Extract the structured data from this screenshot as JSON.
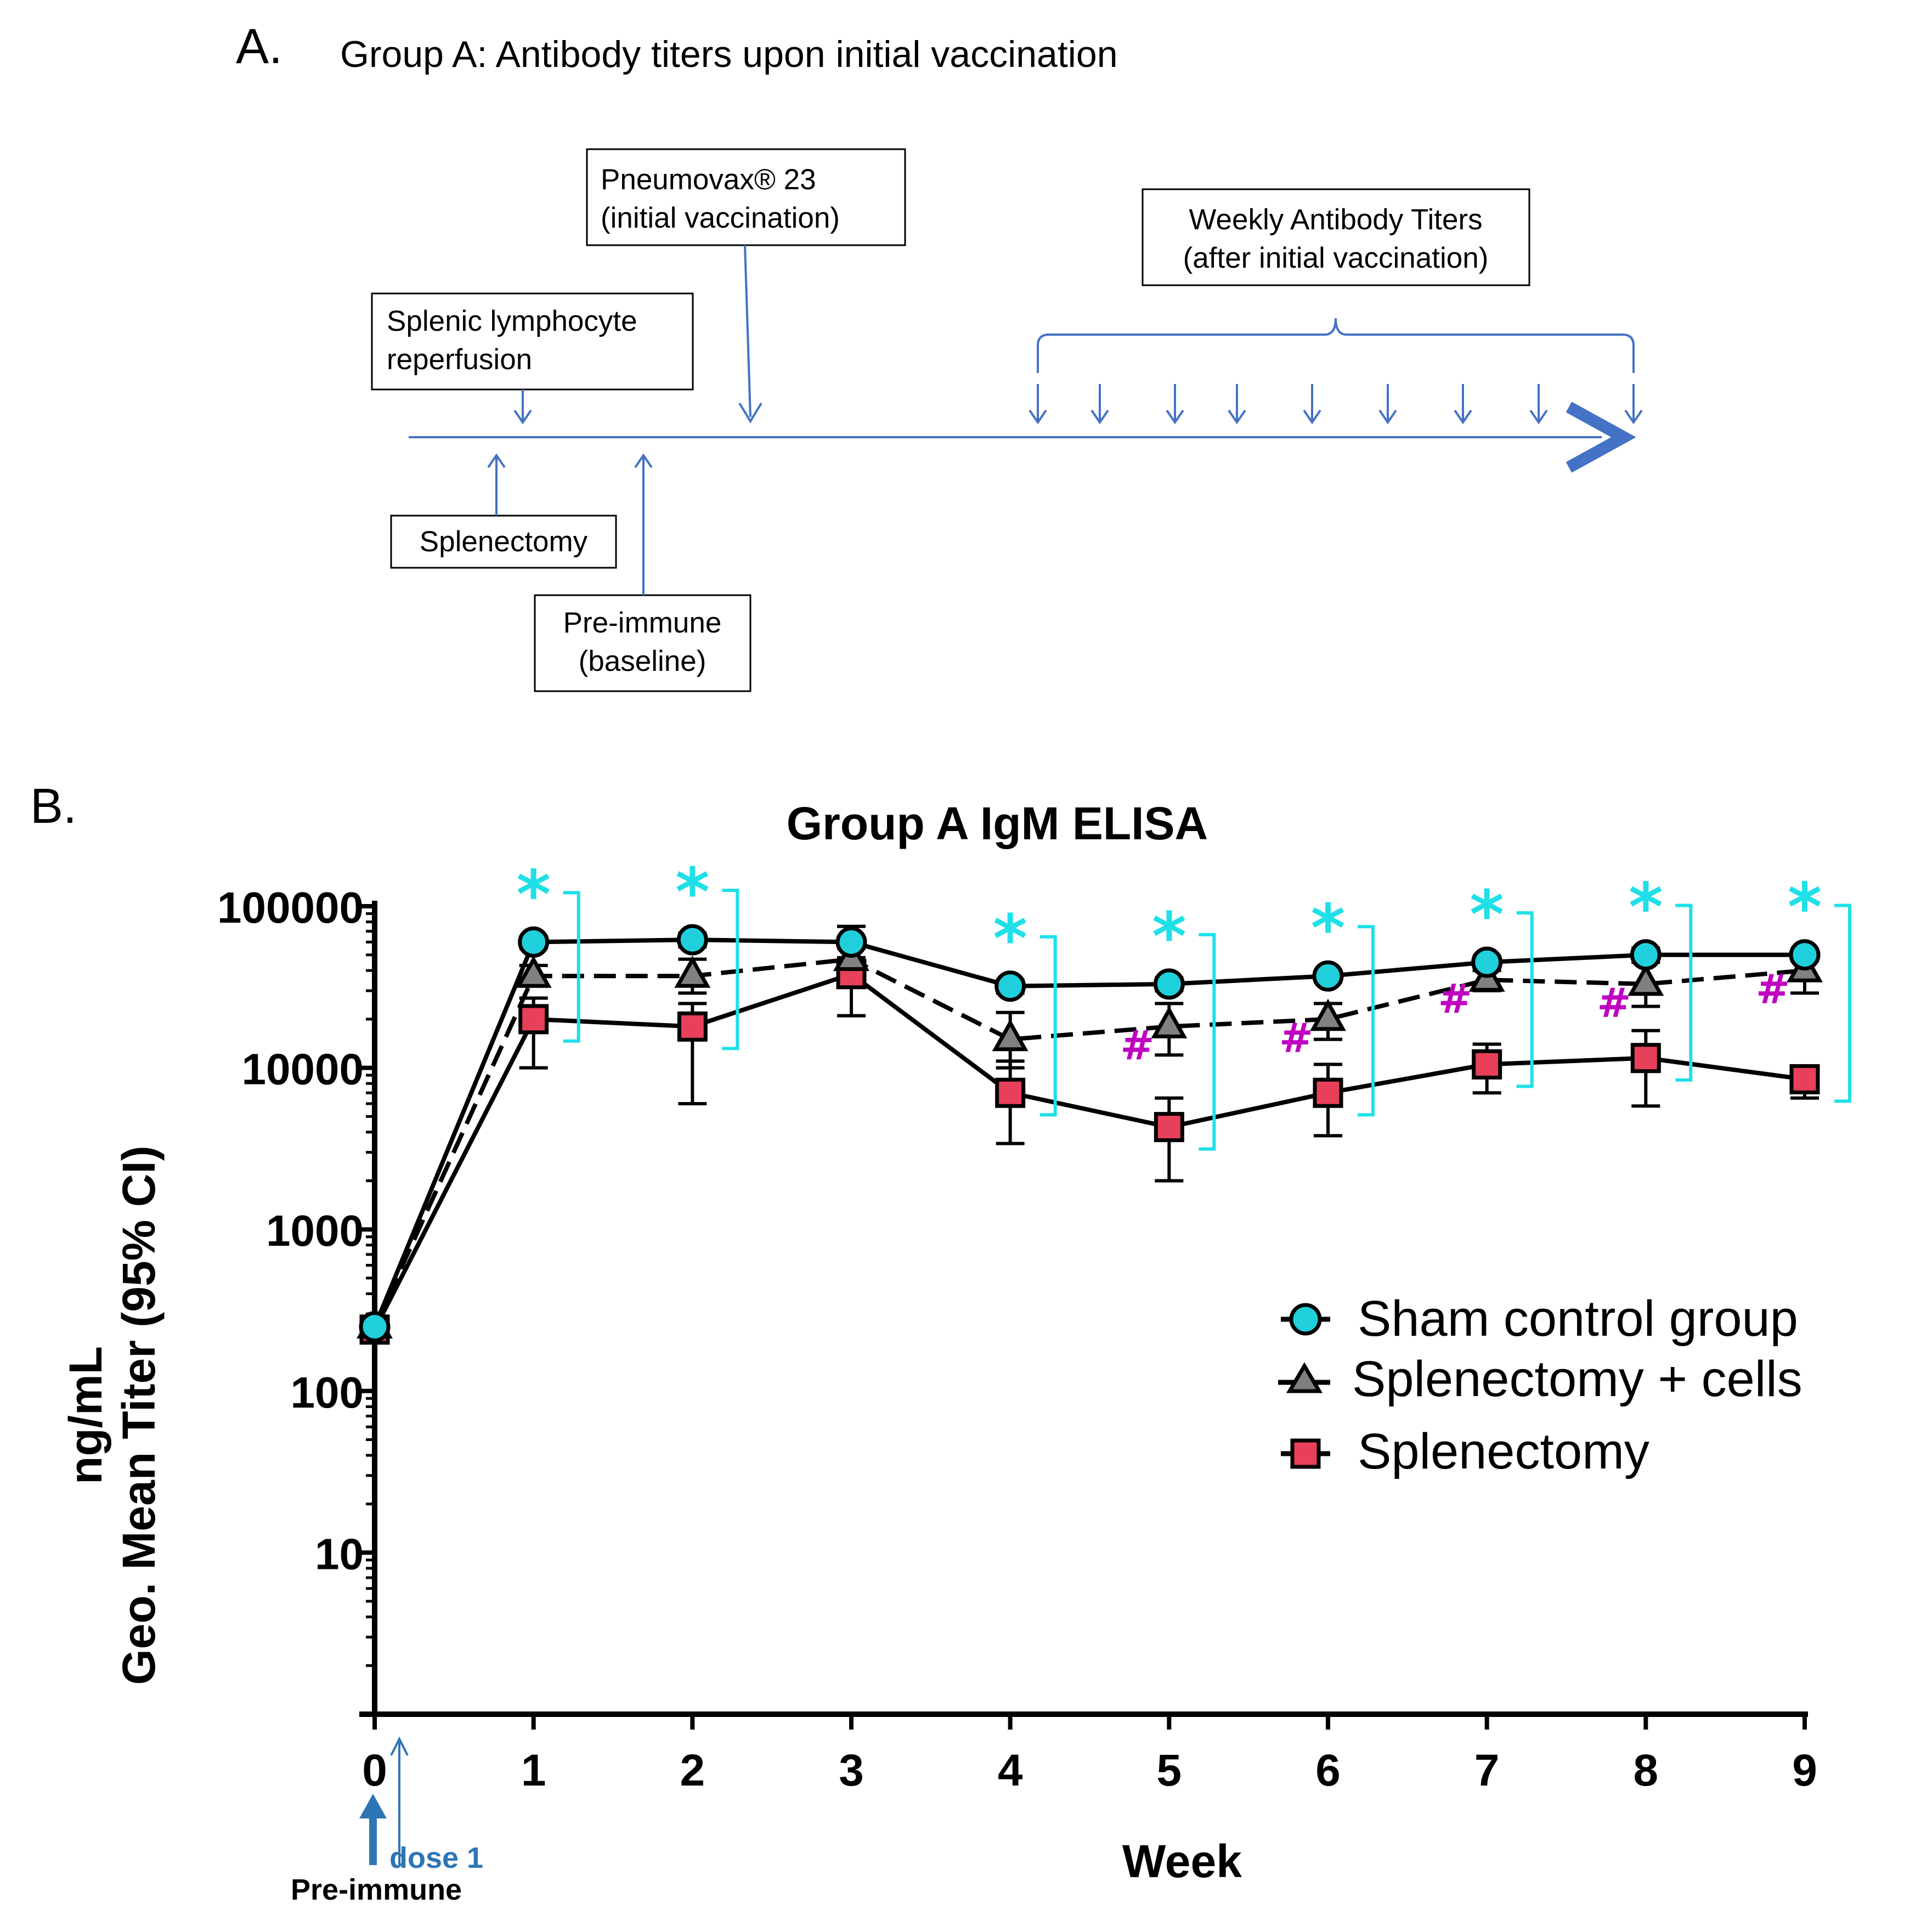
{
  "panel_a": {
    "label": "A.",
    "title": "Group A: Antibody titers upon initial vaccination",
    "boxes": {
      "pneumovax_line1": "Pneumovax® 23",
      "pneumovax_line2": "(initial vaccination)",
      "weekly_line1": "Weekly Antibody  Titers",
      "weekly_line2": "(after initial vaccination)",
      "splenic_line1": "Splenic  lymphocyte",
      "splenic_line2": "reperfusion",
      "splenectomy": "Splenectomy",
      "preimmune_line1": "Pre-immune",
      "preimmune_line2": "(baseline)"
    },
    "colors": {
      "timeline": "#4472c4"
    }
  },
  "panel_b": {
    "label": "B.",
    "annotations": {
      "dose": "dose 1",
      "preimmune": "Pre-immune",
      "star": "*",
      "hash": "#"
    }
  },
  "chart_data": {
    "type": "line",
    "title": "Group A IgM ELISA",
    "xlabel": "Week",
    "ylabel_line1": "ng/mL",
    "ylabel_line2": "Geo. Mean Titer  (95% CI)",
    "yscale": "log",
    "ylim": [
      1,
      100000
    ],
    "xlim": [
      0,
      9
    ],
    "x": [
      0,
      1,
      2,
      3,
      4,
      5,
      6,
      7,
      8,
      9
    ],
    "x_tick_labels": [
      "0",
      "1",
      "2",
      "3",
      "4",
      "5",
      "6",
      "7",
      "8",
      "9"
    ],
    "y_ticks": [
      10,
      100,
      1000,
      10000,
      100000
    ],
    "y_tick_labels": [
      "10",
      "100",
      "1000",
      "10000",
      "100000"
    ],
    "legend_position": "right-middle",
    "series": [
      {
        "name": "Sham control group",
        "marker": "circle",
        "line": "solid",
        "color": "#1fd0dc",
        "values": [
          250,
          60000,
          62000,
          60000,
          32000,
          33000,
          37000,
          45000,
          50000,
          50000
        ],
        "ci_low": [
          220,
          55000,
          56000,
          48000,
          29000,
          30000,
          34000,
          41000,
          45000,
          46000
        ],
        "ci_high": [
          280,
          65000,
          68000,
          75000,
          35000,
          36000,
          40000,
          49000,
          55000,
          54000
        ]
      },
      {
        "name": "Splenectomy + cells",
        "marker": "triangle",
        "line": "dashed",
        "color": "#808080",
        "values": [
          250,
          37000,
          37000,
          47000,
          15000,
          18000,
          20000,
          35000,
          33000,
          40000
        ],
        "ci_low": [
          220,
          32000,
          29000,
          40000,
          10000,
          12000,
          15000,
          30000,
          24000,
          29000
        ],
        "ci_high": [
          280,
          43000,
          47000,
          55000,
          22000,
          25000,
          25000,
          40000,
          45000,
          52000
        ]
      },
      {
        "name": "Splenectomy",
        "marker": "square",
        "line": "solid",
        "color": "#e8405a",
        "values": [
          240,
          20000,
          18000,
          38000,
          7000,
          4300,
          7000,
          10500,
          11500,
          8500
        ],
        "ci_low": [
          210,
          10000,
          6000,
          21000,
          3400,
          2000,
          3800,
          7000,
          5800,
          6500
        ],
        "ci_high": [
          270,
          27000,
          25000,
          62000,
          11000,
          6500,
          10500,
          14000,
          17000,
          10000
        ]
      }
    ],
    "significance": {
      "star_weeks": [
        1,
        2,
        4,
        5,
        6,
        7,
        8,
        9
      ],
      "hash_weeks": [
        5,
        6,
        7,
        8,
        9
      ]
    }
  }
}
